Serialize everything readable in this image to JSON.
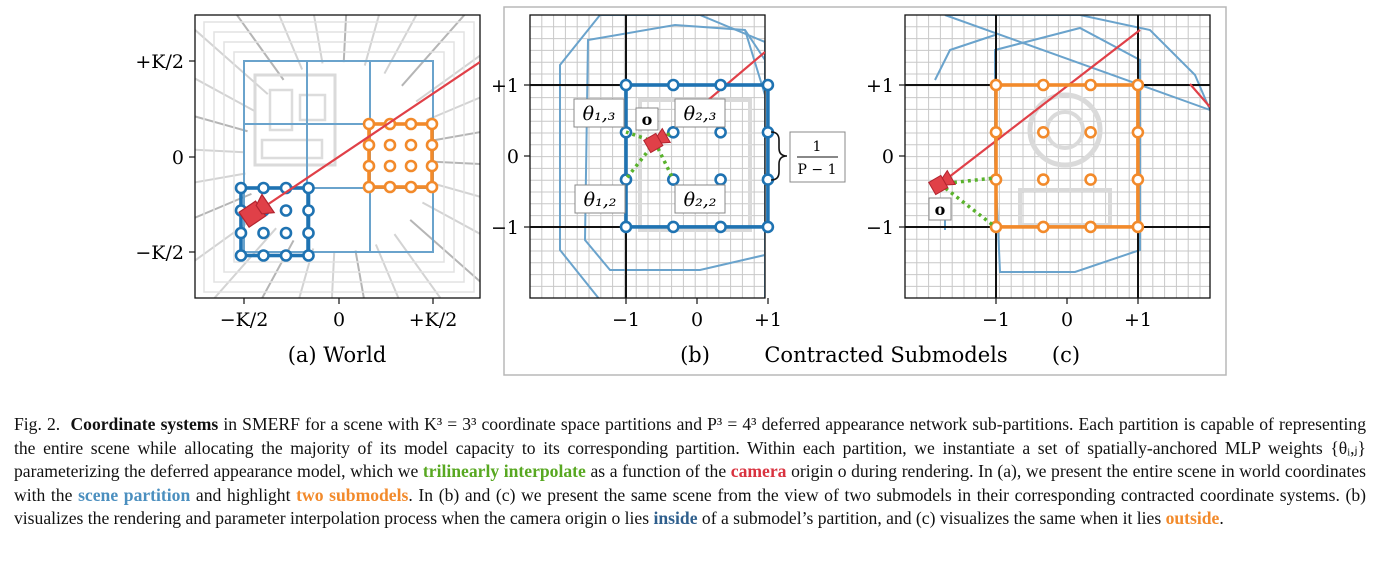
{
  "colors": {
    "partition_blue": "#6aa3cc",
    "submodel_blue": "#1f73b2",
    "submodel_orange": "#f28a2b",
    "camera_red": "#e04048",
    "interp_green": "#59b22c",
    "grid_gray": "#c8c8c8"
  },
  "panel_a": {
    "caption": "(a) World",
    "y_ticks": [
      "+K/2",
      "0",
      "−K/2"
    ],
    "x_ticks": [
      "−K/2",
      "0",
      "+K/2"
    ]
  },
  "panel_b": {
    "caption": "(b)",
    "y_ticks": [
      "+1",
      "0",
      "−1"
    ],
    "x_ticks": [
      "−1",
      "0",
      "+1"
    ],
    "labels": {
      "theta13": "θ₁,₃",
      "theta23": "θ₂,₃",
      "theta12": "θ₁,₂",
      "theta22": "θ₂,₂",
      "origin": "o",
      "spacing_num": "1",
      "spacing_den": "P − 1"
    }
  },
  "panel_c": {
    "caption": "(c)",
    "y_ticks": [
      "+1",
      "0",
      "−1"
    ],
    "x_ticks": [
      "−1",
      "0",
      "+1"
    ],
    "origin": "o"
  },
  "shared_title": "Contracted Submodels",
  "caption": {
    "fig_label": "Fig. 2.",
    "lead": "Coordinate systems",
    "t1": " in SMERF for a scene with K³ = 3³ coordinate space partitions and P³ = 4³ deferred appearance network sub-partitions. Each partition is capable of representing the entire scene while allocating the majority of its model capacity to its corresponding partition. Within each partition, we instantiate a set of spatially-anchored MLP weights {θᵢ,ⱼ} parameterizing the deferred appearance model, which we ",
    "trilinear": "trilinearly interpolate",
    "t2": " as a function of the ",
    "camera": "camera",
    "t3": " origin o during rendering. In (a), we present the entire scene in world coordinates with the ",
    "scene_partition": "scene partition",
    "t4": " and highlight ",
    "two_submodels": "two submodels",
    "t5": ". In (b) and (c) we present the same scene from the view of two submodels in their corresponding contracted coordinate systems. (b) visualizes the rendering and parameter interpolation process when the camera origin o lies ",
    "inside": "inside",
    "t6": " of a submodel’s partition, and (c) visualizes the same when it lies ",
    "outside": "outside",
    "t7": "."
  }
}
